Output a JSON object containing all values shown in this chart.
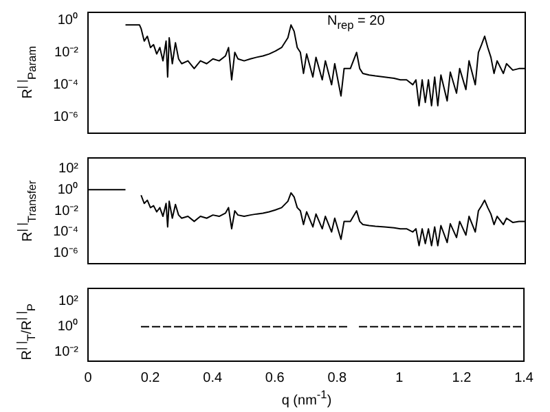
{
  "chart_data": [
    {
      "type": "line",
      "ylabel": "R$^{| |}$$_{Param}$",
      "annotations": [
        "N$_{rep}$ = 20"
      ],
      "log": "y",
      "grid": false,
      "legend": false,
      "marker": "none",
      "line_style": "solid",
      "tick_labels": "y",
      "xlim": [
        0,
        1.4
      ],
      "ylim": [
        1e-07,
        3
      ],
      "yticks": [
        {
          "value": 1,
          "label": "10⁰"
        },
        {
          "value": 0.01,
          "label": "10⁻²"
        },
        {
          "value": 0.0001,
          "label": "10⁻⁴"
        },
        {
          "value": 1e-06,
          "label": "10⁻⁶"
        }
      ],
      "series": [
        {
          "color": "#000000",
          "x": [
            0.12,
            0.165,
            0.17,
            0.18,
            0.19,
            0.2,
            0.21,
            0.22,
            0.23,
            0.24,
            0.25,
            0.255,
            0.26,
            0.27,
            0.28,
            0.29,
            0.3,
            0.32,
            0.34,
            0.36,
            0.38,
            0.4,
            0.42,
            0.44,
            0.45,
            0.46,
            0.47,
            0.48,
            0.5,
            0.52,
            0.54,
            0.56,
            0.58,
            0.6,
            0.62,
            0.64,
            0.65,
            0.66,
            0.67,
            0.68,
            0.69,
            0.7,
            0.72,
            0.73,
            0.75,
            0.76,
            0.78,
            0.79,
            0.81,
            0.82,
            0.84,
            0.86,
            0.87,
            0.88,
            0.9,
            0.92,
            0.95,
            0.98,
            1.0,
            1.02,
            1.04,
            1.05,
            1.06,
            1.07,
            1.08,
            1.09,
            1.1,
            1.11,
            1.12,
            1.13,
            1.15,
            1.16,
            1.18,
            1.19,
            1.21,
            1.22,
            1.24,
            1.25,
            1.26,
            1.27,
            1.28,
            1.29,
            1.3,
            1.31,
            1.33,
            1.34,
            1.36,
            1.38,
            1.4
          ],
          "values": [
            0.5,
            0.5,
            0.3,
            0.05,
            0.1,
            0.02,
            0.03,
            0.008,
            0.02,
            0.003,
            0.05,
            0.0003,
            0.08,
            0.002,
            0.04,
            0.004,
            0.002,
            0.003,
            0.001,
            0.003,
            0.002,
            0.004,
            0.003,
            0.006,
            0.02,
            0.0002,
            0.01,
            0.004,
            0.003,
            0.004,
            0.005,
            0.006,
            0.008,
            0.012,
            0.02,
            0.08,
            0.5,
            0.2,
            0.02,
            0.01,
            0.0005,
            0.008,
            0.0003,
            0.005,
            0.0002,
            0.003,
            0.0001,
            0.002,
            2e-05,
            0.001,
            0.001,
            0.01,
            0.001,
            0.0005,
            0.0004,
            0.00035,
            0.0003,
            0.00025,
            0.0002,
            0.0002,
            0.0001,
            0.0002,
            5e-06,
            0.0002,
            8e-06,
            0.0002,
            5e-06,
            0.0003,
            5e-06,
            0.0004,
            1e-05,
            0.0006,
            3e-05,
            0.001,
            5e-05,
            0.003,
            0.0001,
            0.01,
            0.03,
            0.1,
            0.02,
            0.005,
            0.0005,
            0.003,
            0.0005,
            0.002,
            0.0008,
            0.001,
            0.001
          ]
        }
      ]
    },
    {
      "type": "line",
      "ylabel": "R$^{| |}$$_{Transfer}$",
      "log": "y",
      "grid": false,
      "legend": false,
      "marker": "none",
      "line_style": "solid",
      "tick_labels": "y",
      "xlim": [
        0,
        1.4
      ],
      "ylim": [
        1e-07,
        1000
      ],
      "yticks": [
        {
          "value": 100,
          "label": "10²"
        },
        {
          "value": 1,
          "label": "10⁰"
        },
        {
          "value": 0.01,
          "label": "10⁻²"
        },
        {
          "value": 0.0001,
          "label": "10⁻⁴"
        },
        {
          "value": 1e-06,
          "label": "10⁻⁶"
        }
      ],
      "series": [
        {
          "color": "#000000",
          "x": [
            0,
            0.12,
            0.14,
            0.17,
            0.18,
            0.19,
            0.2,
            0.21,
            0.22,
            0.23,
            0.24,
            0.25,
            0.255,
            0.26,
            0.27,
            0.28,
            0.29,
            0.3,
            0.32,
            0.34,
            0.36,
            0.38,
            0.4,
            0.42,
            0.44,
            0.45,
            0.46,
            0.47,
            0.48,
            0.5,
            0.52,
            0.54,
            0.56,
            0.58,
            0.6,
            0.62,
            0.64,
            0.65,
            0.66,
            0.67,
            0.68,
            0.69,
            0.7,
            0.72,
            0.73,
            0.75,
            0.76,
            0.78,
            0.79,
            0.81,
            0.82,
            0.84,
            0.86,
            0.87,
            0.88,
            0.9,
            0.92,
            0.95,
            0.98,
            1.0,
            1.02,
            1.04,
            1.05,
            1.06,
            1.07,
            1.08,
            1.09,
            1.1,
            1.11,
            1.12,
            1.13,
            1.15,
            1.16,
            1.18,
            1.19,
            1.21,
            1.22,
            1.24,
            1.25,
            1.26,
            1.27,
            1.28,
            1.29,
            1.3,
            1.31,
            1.33,
            1.34,
            1.36,
            1.38,
            1.4
          ],
          "values": [
            1,
            1,
            null,
            0.3,
            0.05,
            0.1,
            0.02,
            0.03,
            0.008,
            0.02,
            0.003,
            0.05,
            0.0003,
            0.08,
            0.002,
            0.04,
            0.004,
            0.002,
            0.003,
            0.001,
            0.003,
            0.002,
            0.004,
            0.003,
            0.006,
            0.02,
            0.0002,
            0.01,
            0.004,
            0.003,
            0.004,
            0.005,
            0.006,
            0.008,
            0.012,
            0.02,
            0.08,
            0.5,
            0.2,
            0.02,
            0.01,
            0.0005,
            0.008,
            0.0003,
            0.005,
            0.0002,
            0.003,
            0.0001,
            0.002,
            2e-05,
            0.001,
            0.001,
            0.01,
            0.001,
            0.0005,
            0.0004,
            0.00035,
            0.0003,
            0.00025,
            0.0002,
            0.0002,
            0.0001,
            0.0002,
            5e-06,
            0.0002,
            8e-06,
            0.0002,
            5e-06,
            0.0003,
            5e-06,
            0.0004,
            1e-05,
            0.0006,
            3e-05,
            0.001,
            5e-05,
            0.003,
            0.0001,
            0.01,
            0.03,
            0.1,
            0.02,
            0.005,
            0.0005,
            0.003,
            0.0005,
            0.002,
            0.0008,
            0.001,
            0.001
          ]
        }
      ]
    },
    {
      "type": "line",
      "ylabel": "R$^{| |}$$_{T}$/R$^{| |}$$_{P}$",
      "xlabel": "q (nm$^{-1}$)",
      "log": "y",
      "grid": false,
      "legend": false,
      "marker": "none",
      "line_style": "dashed",
      "xlim": [
        0,
        1.4
      ],
      "xticks": [
        0,
        0.2,
        0.4,
        0.6,
        0.8,
        1,
        1.2,
        1.4
      ],
      "ylim": [
        0.002,
        1000
      ],
      "yticks": [
        {
          "value": 100,
          "label": "10²"
        },
        {
          "value": 1,
          "label": "10⁰"
        },
        {
          "value": 0.01,
          "label": "10⁻²"
        }
      ],
      "series": [
        {
          "color": "#000000",
          "x": [
            0.17,
            0.84,
            0.85,
            0.87,
            1.4
          ],
          "values": [
            1,
            1,
            null,
            1,
            1
          ]
        }
      ]
    }
  ]
}
